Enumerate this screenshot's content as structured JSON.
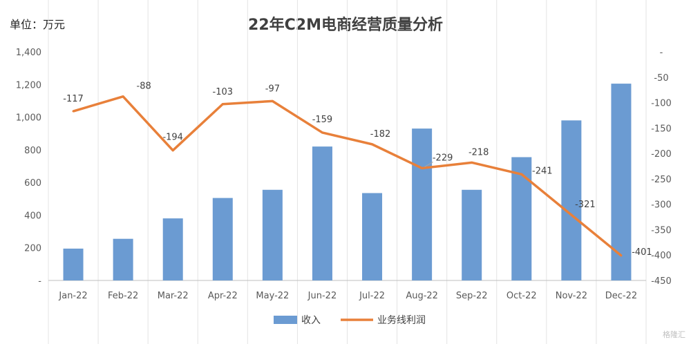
{
  "header": {
    "unit_label": "单位：万元",
    "watermark": "格隆汇"
  },
  "chart_data": {
    "type": "bar",
    "title": "22年C2M电商经营质量分析",
    "categories": [
      "Jan-22",
      "Feb-22",
      "Mar-22",
      "Apr-22",
      "May-22",
      "Jun-22",
      "Jul-22",
      "Aug-22",
      "Sep-22",
      "Oct-22",
      "Nov-22",
      "Dec-22"
    ],
    "series": [
      {
        "name": "收入",
        "type": "bar",
        "axis": "left",
        "color": "#6b9bd2",
        "values": [
          195,
          255,
          380,
          505,
          555,
          820,
          535,
          930,
          555,
          755,
          980,
          1205
        ]
      },
      {
        "name": "业务线利润",
        "type": "line",
        "axis": "right",
        "color": "#e8803a",
        "values": [
          -117,
          -88,
          -194,
          -103,
          -97,
          -159,
          -182,
          -229,
          -218,
          -241,
          -321,
          -401
        ],
        "labels": [
          "-117",
          "-88",
          "-194",
          "-103",
          "-97",
          "-159",
          "-182",
          "-229",
          "-218",
          "-241",
          "-321",
          "-401"
        ]
      }
    ],
    "y_left": {
      "ylim": [
        0,
        1400
      ],
      "ticks": [
        "-",
        "200",
        "400",
        "600",
        "800",
        "1,000",
        "1,200",
        "1,400"
      ],
      "tick_values": [
        0,
        200,
        400,
        600,
        800,
        1000,
        1200,
        1400
      ]
    },
    "y_right": {
      "ylim": [
        -450,
        0
      ],
      "ticks": [
        "-450",
        "-400",
        "-350",
        "-300",
        "-250",
        "-200",
        "-150",
        "-100",
        "-50",
        "-"
      ],
      "tick_values": [
        -450,
        -400,
        -350,
        -300,
        -250,
        -200,
        -150,
        -100,
        -50,
        0
      ]
    },
    "grid": "vertical",
    "legend": "bottom"
  }
}
